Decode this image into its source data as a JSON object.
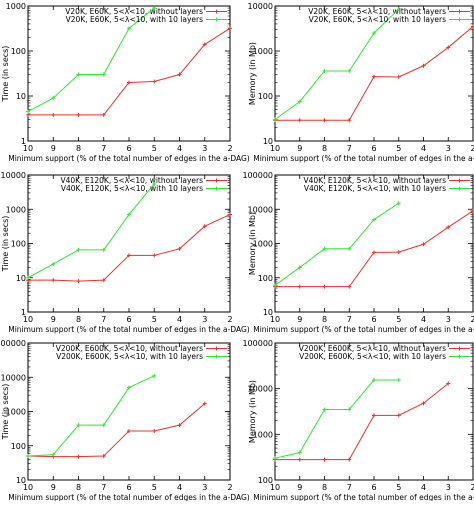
{
  "figure": {
    "shared_xlabel": "Minimum support (% of the total number of edges in the a-DAG)"
  },
  "chart_data": [
    {
      "type": "line",
      "ylabel": "Time (in secs)",
      "yscale": "log",
      "ylim": [
        1,
        1000
      ],
      "yticks": [
        1,
        10,
        100,
        1000
      ],
      "xlim": [
        10,
        2
      ],
      "xticks": [
        10,
        9,
        8,
        7,
        6,
        5,
        4,
        3,
        2
      ],
      "xlabel": "Minimum support (% of the total number of edges in the a-DAG)",
      "legend_position": "top-right",
      "series": [
        {
          "name": "V20K,  E60K,   5<λ<10, without layers",
          "color": "#e8332a",
          "x": [
            10,
            9,
            8,
            7,
            6,
            5,
            4,
            3,
            2
          ],
          "y": [
            3.8,
            3.8,
            3.8,
            3.8,
            20,
            21,
            30,
            140,
            320
          ]
        },
        {
          "name": "V20K,  E60K,   5<λ<10, with 10 layers",
          "color": "#2ee832",
          "x": [
            10,
            9,
            8,
            7,
            6,
            5
          ],
          "y": [
            4.5,
            9,
            30,
            30,
            320,
            900
          ]
        }
      ]
    },
    {
      "type": "line",
      "ylabel": "Memory (in Mb)",
      "yscale": "log",
      "ylim": [
        10,
        10000
      ],
      "yticks": [
        10,
        100,
        1000,
        10000
      ],
      "xlim": [
        10,
        2
      ],
      "xticks": [
        10,
        9,
        8,
        7,
        6,
        5,
        4,
        3,
        2
      ],
      "xlabel": "Minimum support (% of the total number of edges in the a-DAG)",
      "legend_position": "top-right",
      "series": [
        {
          "name": "V20K,  E60K,   5<λ<10, without layers",
          "color": "#e8332a",
          "x": [
            10,
            9,
            8,
            7,
            6,
            5,
            4,
            3,
            2
          ],
          "y": [
            29,
            29,
            29,
            29,
            270,
            265,
            470,
            1200,
            3500
          ]
        },
        {
          "name": "V20K,  E60K,   5<λ<10, with 10 layers",
          "color": "#2ee832",
          "x": [
            10,
            9,
            8,
            7,
            6,
            5
          ],
          "y": [
            30,
            75,
            360,
            360,
            2500,
            8500
          ]
        }
      ]
    },
    {
      "type": "line",
      "ylabel": "Time (in secs)",
      "yscale": "log",
      "ylim": [
        1,
        10000
      ],
      "yticks": [
        1,
        10,
        100,
        1000,
        10000
      ],
      "xlim": [
        10,
        2
      ],
      "xticks": [
        10,
        9,
        8,
        7,
        6,
        5,
        4,
        3,
        2
      ],
      "xlabel": "Minimum support (% of the total number of edges in the a-DAG)",
      "legend_position": "top-right",
      "series": [
        {
          "name": "V40K, E120K,   5<λ<10, without layers",
          "color": "#e8332a",
          "x": [
            10,
            9,
            8,
            7,
            6,
            5,
            4,
            3,
            2
          ],
          "y": [
            8.5,
            8.5,
            8,
            8.5,
            45,
            45,
            70,
            320,
            700
          ]
        },
        {
          "name": "V40K, E120K,   5<λ<10, with 10 layers",
          "color": "#2ee832",
          "x": [
            10,
            9,
            8,
            7,
            6,
            5
          ],
          "y": [
            10,
            25,
            65,
            65,
            700,
            5500
          ]
        }
      ]
    },
    {
      "type": "line",
      "ylabel": "Memory (in Mb)",
      "yscale": "log",
      "ylim": [
        10,
        100000
      ],
      "yticks": [
        10,
        100,
        1000,
        10000,
        100000
      ],
      "xlim": [
        10,
        2
      ],
      "xticks": [
        10,
        9,
        8,
        7,
        6,
        5,
        4,
        3,
        2
      ],
      "xlabel": "Minimum support (% of the total number of edges in the a-DAG)",
      "legend_position": "top-right",
      "series": [
        {
          "name": "V40K, E120K,   5<λ<10, without layers",
          "color": "#e8332a",
          "x": [
            10,
            9,
            8,
            7,
            6,
            5,
            4,
            3,
            2
          ],
          "y": [
            55,
            55,
            55,
            55,
            550,
            560,
            950,
            3000,
            9000
          ]
        },
        {
          "name": "V40K, E120K,   5<λ<10, with 10 layers",
          "color": "#2ee832",
          "x": [
            10,
            9,
            8,
            7,
            6,
            5
          ],
          "y": [
            60,
            200,
            700,
            700,
            5000,
            15000
          ]
        }
      ]
    },
    {
      "type": "line",
      "ylabel": "Time (in secs)",
      "yscale": "log",
      "ylim": [
        10,
        100000
      ],
      "yticks": [
        10,
        100,
        1000,
        10000,
        100000
      ],
      "xlim": [
        10,
        2
      ],
      "xticks": [
        10,
        9,
        8,
        7,
        6,
        5,
        4,
        3,
        2
      ],
      "xlabel": "Minimum support (% of the total number of edges in the a-DAG)",
      "legend_position": "top-right",
      "series": [
        {
          "name": "V200K,  E600K,   5<λ<10, without layers",
          "color": "#e8332a",
          "x": [
            10,
            9,
            8,
            7,
            6,
            5,
            4,
            3
          ],
          "y": [
            50,
            48,
            48,
            50,
            270,
            270,
            400,
            1700
          ]
        },
        {
          "name": "V200K,  E600K,   5<λ<10, with 10 layers",
          "color": "#2ee832",
          "x": [
            10,
            9,
            8,
            7,
            6,
            5
          ],
          "y": [
            50,
            55,
            400,
            400,
            5000,
            11000
          ]
        }
      ]
    },
    {
      "type": "line",
      "ylabel": "Memory (in Mb)",
      "yscale": "log",
      "ylim": [
        100,
        100000
      ],
      "yticks": [
        100,
        1000,
        10000,
        100000
      ],
      "xlim": [
        10,
        2
      ],
      "xticks": [
        10,
        9,
        8,
        7,
        6,
        5,
        4,
        3,
        2
      ],
      "xlabel": "Minimum support (% of the total number of edges in the a-DAG)",
      "legend_position": "top-right",
      "series": [
        {
          "name": "V200K,  E600K,   5<λ<10, without layers",
          "color": "#e8332a",
          "x": [
            10,
            9,
            8,
            7,
            6,
            5,
            4,
            3
          ],
          "y": [
            280,
            280,
            280,
            280,
            2600,
            2600,
            4800,
            13000
          ]
        },
        {
          "name": "V200K,  E600K,   5<λ<10, with 10 layers",
          "color": "#2ee832",
          "x": [
            10,
            9,
            8,
            7,
            6,
            5
          ],
          "y": [
            300,
            400,
            3500,
            3500,
            15500,
            15500
          ]
        }
      ]
    }
  ]
}
